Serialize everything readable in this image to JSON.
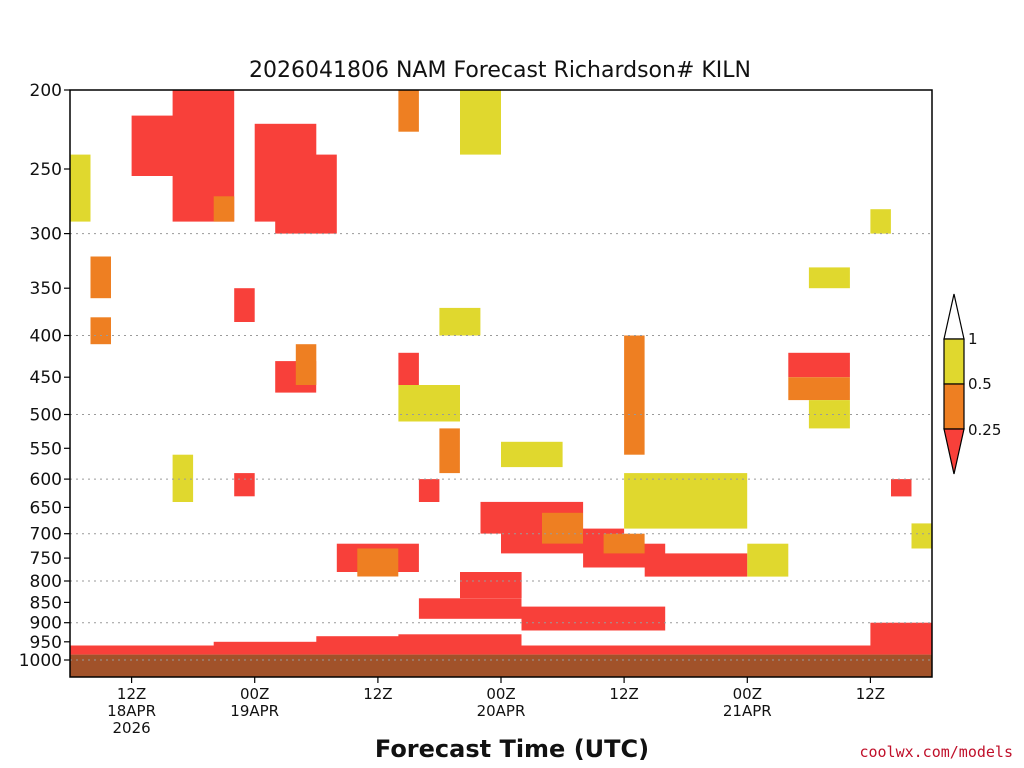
{
  "chart_data": {
    "type": "heatmap",
    "title": "2026041806 NAM Forecast Richardson# KILN",
    "xlabel": "Forecast Time (UTC)",
    "credit": "coolwx.com/models",
    "y_axis": {
      "scale": "pressure (log)",
      "range": [
        1000,
        200
      ],
      "ticks": [
        "200",
        "250",
        "300",
        "350",
        "400",
        "450",
        "500",
        "550",
        "600",
        "650",
        "700",
        "750",
        "800",
        "850",
        "900",
        "950",
        "1000"
      ]
    },
    "x_axis": {
      "range": [
        "2026-04-18 06Z",
        "2026-04-21 18Z"
      ],
      "ticks": [
        {
          "time": "2026-04-18 12Z",
          "lines": [
            "12Z",
            "18APR",
            "2026"
          ]
        },
        {
          "time": "2026-04-19 00Z",
          "lines": [
            "00Z",
            "19APR"
          ]
        },
        {
          "time": "2026-04-19 12Z",
          "lines": [
            "12Z"
          ]
        },
        {
          "time": "2026-04-20 00Z",
          "lines": [
            "00Z",
            "20APR"
          ]
        },
        {
          "time": "2026-04-20 12Z",
          "lines": [
            "12Z"
          ]
        },
        {
          "time": "2026-04-21 00Z",
          "lines": [
            "00Z",
            "21APR"
          ]
        },
        {
          "time": "2026-04-21 12Z",
          "lines": [
            "12Z"
          ]
        }
      ]
    },
    "grid": "dotted lines at 300, 400, 500, 600, 700, 800, 900, 1000",
    "legend": {
      "placement": "right",
      "labels": [
        "1",
        "0.5",
        "0.25"
      ],
      "bins": [
        {
          "from": 0.5,
          "to": 1,
          "color": "#e0d82e"
        },
        {
          "from": 0.25,
          "to": 0.5,
          "color": "#ee7f22"
        },
        {
          "from": null,
          "to": 0.25,
          "color": "#f8403a"
        }
      ]
    },
    "ground_color": "#a1522a",
    "ground_layer_top": 985,
    "regions": [
      {
        "category": "lt_0.25",
        "t0": "2026-04-18 06Z",
        "t1": "2026-04-21 18Z",
        "p_top": 960,
        "p_bot": 985
      },
      {
        "category": "lt_0.25",
        "t0": "2026-04-18 20Z",
        "t1": "2026-04-19 22Z",
        "p_top": 950,
        "p_bot": 965
      },
      {
        "category": "lt_0.25",
        "t0": "2026-04-19 06Z",
        "t1": "2026-04-19 18Z",
        "p_top": 935,
        "p_bot": 960
      },
      {
        "category": "lt_0.25",
        "t0": "2026-04-19 14Z",
        "t1": "2026-04-20 02Z",
        "p_top": 930,
        "p_bot": 960
      },
      {
        "category": "lt_0.25",
        "t0": "2026-04-21 12Z",
        "t1": "2026-04-21 18Z",
        "p_top": 900,
        "p_bot": 960
      },
      {
        "category": "lt_0.25",
        "t0": "2026-04-19 16Z",
        "t1": "2026-04-20 02Z",
        "p_top": 840,
        "p_bot": 890
      },
      {
        "category": "lt_0.25",
        "t0": "2026-04-20 02Z",
        "t1": "2026-04-20 16Z",
        "p_top": 860,
        "p_bot": 920
      },
      {
        "category": "lt_0.25",
        "t0": "2026-04-19 20Z",
        "t1": "2026-04-20 02Z",
        "p_top": 780,
        "p_bot": 840
      },
      {
        "category": "lt_0.25",
        "t0": "2026-04-20 14Z",
        "t1": "2026-04-21 00Z",
        "p_top": 740,
        "p_bot": 790
      },
      {
        "category": "lt_0.25",
        "t0": "2026-04-20 00Z",
        "t1": "2026-04-20 12Z",
        "p_top": 690,
        "p_bot": 740
      },
      {
        "category": "lt_0.25",
        "t0": "2026-04-20 08Z",
        "t1": "2026-04-20 16Z",
        "p_top": 720,
        "p_bot": 770
      },
      {
        "category": "lt_0.25",
        "t0": "2026-04-19 22Z",
        "t1": "2026-04-20 08Z",
        "p_top": 640,
        "p_bot": 700
      },
      {
        "category": "lt_0.25",
        "t0": "2026-04-19 08Z",
        "t1": "2026-04-19 16Z",
        "p_top": 720,
        "p_bot": 780
      },
      {
        "category": "lt_0.25",
        "t0": "2026-04-18 12Z",
        "t1": "2026-04-18 20Z",
        "p_top": 215,
        "p_bot": 255
      },
      {
        "category": "lt_0.25",
        "t0": "2026-04-18 16Z",
        "t1": "2026-04-18 22Z",
        "p_top": 200,
        "p_bot": 290
      },
      {
        "category": "lt_0.25",
        "t0": "2026-04-19 00Z",
        "t1": "2026-04-19 06Z",
        "p_top": 220,
        "p_bot": 290
      },
      {
        "category": "lt_0.25",
        "t0": "2026-04-19 02Z",
        "t1": "2026-04-19 08Z",
        "p_top": 240,
        "p_bot": 300
      },
      {
        "category": "lt_0.25",
        "t0": "2026-04-18 22Z",
        "t1": "2026-04-19 00Z",
        "p_top": 350,
        "p_bot": 385
      },
      {
        "category": "lt_0.25",
        "t0": "2026-04-19 02Z",
        "t1": "2026-04-19 06Z",
        "p_top": 430,
        "p_bot": 470
      },
      {
        "category": "lt_0.25",
        "t0": "2026-04-21 04Z",
        "t1": "2026-04-21 10Z",
        "p_top": 420,
        "p_bot": 450
      },
      {
        "category": "lt_0.25",
        "t0": "2026-04-19 14Z",
        "t1": "2026-04-19 16Z",
        "p_top": 420,
        "p_bot": 460
      },
      {
        "category": "lt_0.25",
        "t0": "2026-04-18 22Z",
        "t1": "2026-04-19 00Z",
        "p_top": 590,
        "p_bot": 630
      },
      {
        "category": "lt_0.25",
        "t0": "2026-04-19 16Z",
        "t1": "2026-04-19 18Z",
        "p_top": 600,
        "p_bot": 640
      },
      {
        "category": "lt_0.25",
        "t0": "2026-04-21 14Z",
        "t1": "2026-04-21 16Z",
        "p_top": 600,
        "p_bot": 630
      },
      {
        "category": "0.25_0.5",
        "t0": "2026-04-19 10Z",
        "t1": "2026-04-19 14Z",
        "p_top": 730,
        "p_bot": 790
      },
      {
        "category": "0.25_0.5",
        "t0": "2026-04-20 04Z",
        "t1": "2026-04-20 08Z",
        "p_top": 660,
        "p_bot": 720
      },
      {
        "category": "0.25_0.5",
        "t0": "2026-04-20 10Z",
        "t1": "2026-04-20 14Z",
        "p_top": 700,
        "p_bot": 740
      },
      {
        "category": "0.25_0.5",
        "t0": "2026-04-20 12Z",
        "t1": "2026-04-20 14Z",
        "p_top": 400,
        "p_bot": 560
      },
      {
        "category": "0.25_0.5",
        "t0": "2026-04-19 18Z",
        "t1": "2026-04-19 20Z",
        "p_top": 520,
        "p_bot": 590
      },
      {
        "category": "0.25_0.5",
        "t0": "2026-04-19 14Z",
        "t1": "2026-04-19 16Z",
        "p_top": 200,
        "p_bot": 225
      },
      {
        "category": "0.25_0.5",
        "t0": "2026-04-21 04Z",
        "t1": "2026-04-21 10Z",
        "p_top": 450,
        "p_bot": 480
      },
      {
        "category": "0.25_0.5",
        "t0": "2026-04-19 04Z",
        "t1": "2026-04-19 06Z",
        "p_top": 410,
        "p_bot": 460
      },
      {
        "category": "0.25_0.5",
        "t0": "2026-04-18 08Z",
        "t1": "2026-04-18 10Z",
        "p_top": 380,
        "p_bot": 410
      },
      {
        "category": "0.25_0.5",
        "t0": "2026-04-18 20Z",
        "t1": "2026-04-18 22Z",
        "p_top": 270,
        "p_bot": 290
      },
      {
        "category": "0.25_0.5",
        "t0": "2026-04-18 08Z",
        "t1": "2026-04-18 10Z",
        "p_top": 320,
        "p_bot": 360
      },
      {
        "category": "0.5_1",
        "t0": "2026-04-19 20Z",
        "t1": "2026-04-20 00Z",
        "p_top": 200,
        "p_bot": 240
      },
      {
        "category": "0.5_1",
        "t0": "2026-04-20 12Z",
        "t1": "2026-04-21 00Z",
        "p_top": 590,
        "p_bot": 690
      },
      {
        "category": "0.5_1",
        "t0": "2026-04-21 00Z",
        "t1": "2026-04-21 04Z",
        "p_top": 720,
        "p_bot": 790
      },
      {
        "category": "0.5_1",
        "t0": "2026-04-20 00Z",
        "t1": "2026-04-20 06Z",
        "p_top": 540,
        "p_bot": 580
      },
      {
        "category": "0.5_1",
        "t0": "2026-04-21 06Z",
        "t1": "2026-04-21 10Z",
        "p_top": 480,
        "p_bot": 520
      },
      {
        "category": "0.5_1",
        "t0": "2026-04-21 06Z",
        "t1": "2026-04-21 10Z",
        "p_top": 330,
        "p_bot": 350
      },
      {
        "category": "0.5_1",
        "t0": "2026-04-21 12Z",
        "t1": "2026-04-21 14Z",
        "p_top": 280,
        "p_bot": 300
      },
      {
        "category": "0.5_1",
        "t0": "2026-04-18 06Z",
        "t1": "2026-04-18 08Z",
        "p_top": 240,
        "p_bot": 290
      },
      {
        "category": "0.5_1",
        "t0": "2026-04-19 14Z",
        "t1": "2026-04-19 20Z",
        "p_top": 460,
        "p_bot": 510
      },
      {
        "category": "0.5_1",
        "t0": "2026-04-18 16Z",
        "t1": "2026-04-18 18Z",
        "p_top": 560,
        "p_bot": 640
      },
      {
        "category": "0.5_1",
        "t0": "2026-04-19 18Z",
        "t1": "2026-04-19 22Z",
        "p_top": 370,
        "p_bot": 400
      },
      {
        "category": "0.5_1",
        "t0": "2026-04-21 16Z",
        "t1": "2026-04-21 18Z",
        "p_top": 680,
        "p_bot": 730
      }
    ]
  }
}
